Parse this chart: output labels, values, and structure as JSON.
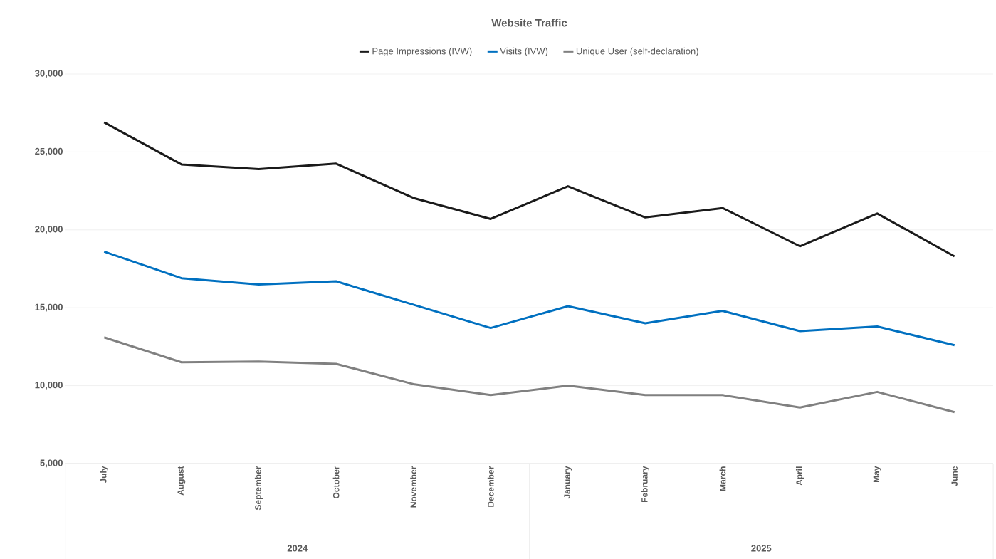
{
  "chart_data": {
    "type": "line",
    "title": "Website Traffic",
    "categories": [
      "July",
      "August",
      "September",
      "October",
      "November",
      "December",
      "January",
      "February",
      "March",
      "April",
      "May",
      "June"
    ],
    "series": [
      {
        "name": "Page Impressions (IVW)",
        "color": "#1a1a1a",
        "values": [
          26900,
          24200,
          23900,
          24250,
          22050,
          20700,
          22800,
          20800,
          21400,
          18950,
          21050,
          18300
        ]
      },
      {
        "name": "Visits (IVW)",
        "color": "#0070c0",
        "values": [
          18600,
          16900,
          16500,
          16700,
          15200,
          13700,
          15100,
          14000,
          14800,
          13500,
          13800,
          12600
        ]
      },
      {
        "name": "Unique User (self-declaration)",
        "color": "#808080",
        "values": [
          13100,
          11500,
          11550,
          11400,
          10100,
          9400,
          10000,
          9400,
          9400,
          8600,
          9600,
          8300
        ]
      }
    ],
    "annotations": [
      "2024",
      "2025"
    ],
    "ylim": [
      5000,
      30000
    ],
    "yticks": [
      {
        "value": 5000,
        "label": "5,000"
      },
      {
        "value": 10000,
        "label": "10,000"
      },
      {
        "value": 15000,
        "label": "15,000"
      },
      {
        "value": 20000,
        "label": "20,000"
      },
      {
        "value": 25000,
        "label": "25,000"
      },
      {
        "value": 30000,
        "label": "30,000"
      }
    ],
    "grid": "y",
    "legend": "top",
    "marker": "none",
    "line_style": "solid"
  }
}
